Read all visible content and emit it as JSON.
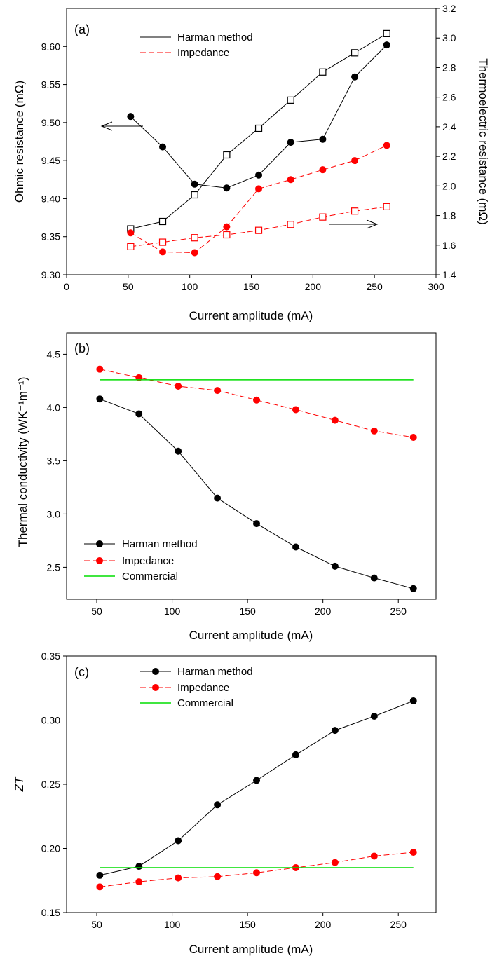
{
  "chart_data": [
    {
      "type": "line",
      "panel_label": "(a)",
      "xlabel": "Current amplitude (mA)",
      "ylabel": "Ohmic resistance (mΩ)",
      "y2label": "Thermoelectric resistance (mΩ)",
      "xlim": [
        0,
        300
      ],
      "ylim": [
        9.3,
        9.65
      ],
      "y2lim": [
        1.4,
        3.2
      ],
      "xticks": [
        "0",
        "50",
        "100",
        "150",
        "200",
        "250",
        "300"
      ],
      "yticks": [
        "9.30",
        "9.35",
        "9.40",
        "9.45",
        "9.50",
        "9.55",
        "9.60"
      ],
      "y2ticks": [
        "1.4",
        "1.6",
        "1.8",
        "2.0",
        "2.2",
        "2.4",
        "2.6",
        "2.8",
        "3.0",
        "3.2"
      ],
      "legend": [
        "Harman method",
        "Impedance"
      ],
      "x": [
        52,
        78,
        104,
        130,
        156,
        182,
        208,
        234,
        260
      ],
      "series": [
        {
          "name": "Harman method",
          "axis": "left",
          "marker": "filled-circle",
          "color": "#000000",
          "dashed": false,
          "values": [
            9.508,
            9.468,
            9.419,
            9.414,
            9.431,
            9.474,
            9.478,
            9.56,
            9.602
          ]
        },
        {
          "name": "Harman method",
          "axis": "right",
          "marker": "open-square",
          "color": "#000000",
          "dashed": false,
          "values": [
            1.71,
            1.76,
            1.94,
            2.21,
            2.39,
            2.58,
            2.77,
            2.9,
            3.03
          ]
        },
        {
          "name": "Impedance",
          "axis": "left",
          "marker": "filled-circle",
          "color": "#ff0000",
          "dashed": true,
          "values": [
            9.355,
            9.33,
            9.329,
            9.363,
            9.413,
            9.425,
            9.438,
            9.45,
            9.47
          ]
        },
        {
          "name": "Impedance",
          "axis": "right",
          "marker": "open-square",
          "color": "#ff0000",
          "dashed": true,
          "values": [
            1.59,
            1.62,
            1.65,
            1.67,
            1.7,
            1.74,
            1.79,
            1.83,
            1.86
          ]
        }
      ]
    },
    {
      "type": "line",
      "panel_label": "(b)",
      "xlabel": "Current amplitude (mA)",
      "ylabel": "Thermal conductivity (WK⁻¹m⁻¹)",
      "xlim": [
        30,
        275
      ],
      "ylim": [
        2.2,
        4.7
      ],
      "xticks": [
        "50",
        "100",
        "150",
        "200",
        "250"
      ],
      "yticks": [
        "2.5",
        "3.0",
        "3.5",
        "4.0",
        "4.5"
      ],
      "legend": [
        "Harman method",
        "Impedance",
        "Commercial"
      ],
      "x": [
        52,
        78,
        104,
        130,
        156,
        182,
        208,
        234,
        260
      ],
      "series": [
        {
          "name": "Harman method",
          "marker": "filled-circle",
          "color": "#000000",
          "dashed": false,
          "values": [
            4.08,
            3.94,
            3.59,
            3.15,
            2.91,
            2.69,
            2.51,
            2.4,
            2.3
          ]
        },
        {
          "name": "Impedance",
          "marker": "filled-circle",
          "color": "#ff0000",
          "dashed": true,
          "values": [
            4.36,
            4.28,
            4.2,
            4.16,
            4.07,
            3.98,
            3.88,
            3.78,
            3.72
          ]
        },
        {
          "name": "Commercial",
          "marker": "none",
          "color": "#00dd00",
          "dashed": false,
          "values": [
            4.26,
            4.26,
            4.26,
            4.26,
            4.26,
            4.26,
            4.26,
            4.26,
            4.26
          ]
        }
      ]
    },
    {
      "type": "line",
      "panel_label": "(c)",
      "xlabel": "Current amplitude (mA)",
      "ylabel": "ZT",
      "xlim": [
        30,
        275
      ],
      "ylim": [
        0.15,
        0.35
      ],
      "xticks": [
        "50",
        "100",
        "150",
        "200",
        "250"
      ],
      "yticks": [
        "0.15",
        "0.20",
        "0.25",
        "0.30",
        "0.35"
      ],
      "legend": [
        "Harman method",
        "Impedance",
        "Commercial"
      ],
      "x": [
        52,
        78,
        104,
        130,
        156,
        182,
        208,
        234,
        260
      ],
      "series": [
        {
          "name": "Harman method",
          "marker": "filled-circle",
          "color": "#000000",
          "dashed": false,
          "values": [
            0.179,
            0.186,
            0.206,
            0.234,
            0.253,
            0.273,
            0.292,
            0.303,
            0.315
          ]
        },
        {
          "name": "Impedance",
          "marker": "filled-circle",
          "color": "#ff0000",
          "dashed": true,
          "values": [
            0.17,
            0.174,
            0.177,
            0.178,
            0.181,
            0.185,
            0.189,
            0.194,
            0.197
          ]
        },
        {
          "name": "Commercial",
          "marker": "none",
          "color": "#00dd00",
          "dashed": false,
          "values": [
            0.185,
            0.185,
            0.185,
            0.185,
            0.185,
            0.185,
            0.185,
            0.185,
            0.185
          ]
        }
      ]
    }
  ]
}
